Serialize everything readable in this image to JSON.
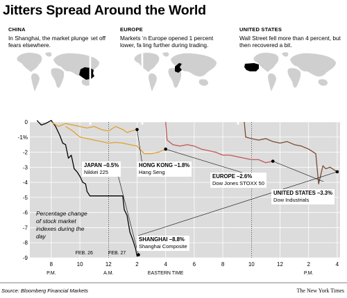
{
  "title": "Jitters Spread Around the World",
  "regions": [
    {
      "name": "CHINA",
      "text": "In Shanghai, the market plunge set off fears elsewhere.",
      "highlight": "china"
    },
    {
      "name": "EUROPE",
      "text": "Markets in Europe opened 1 percent lower, falling further during trading.",
      "highlight": "europe"
    },
    {
      "name": "UNITED STATES",
      "text": "Wall Street fell more than 4 percent, but then recovered a bit.",
      "highlight": "usa"
    }
  ],
  "chart_data": {
    "type": "line",
    "ylabel": "",
    "xlabel": "EASTERN TIME",
    "note": "Percentage change of stock market indexes during the day",
    "ylim": [
      -9,
      0
    ],
    "xlim": [
      6.5,
      28.2
    ],
    "x_units": "hours since noon Feb. 26 (Eastern Time)",
    "y_ticks": [
      0,
      -1,
      -2,
      -3,
      -4,
      -5,
      -6,
      -7,
      -8,
      -9
    ],
    "y_tick_labels": [
      "0",
      "-1%",
      "-2",
      "-3",
      "-4",
      "-5",
      "-6",
      "-7",
      "-8",
      "-9"
    ],
    "x_ticks": [
      {
        "x": 8,
        "label": "8"
      },
      {
        "x": 10,
        "label": "10"
      },
      {
        "x": 12,
        "label": "12"
      },
      {
        "x": 14,
        "label": "2"
      },
      {
        "x": 16,
        "label": "4"
      },
      {
        "x": 18,
        "label": "6"
      },
      {
        "x": 20,
        "label": "8"
      },
      {
        "x": 22,
        "label": "10"
      },
      {
        "x": 24,
        "label": "12"
      },
      {
        "x": 26,
        "label": "2"
      },
      {
        "x": 28,
        "label": "4"
      }
    ],
    "x_sublabels": [
      {
        "x": 8,
        "text": "P.M."
      },
      {
        "x": 12,
        "text": "A.M."
      },
      {
        "x": 26,
        "text": "P.M."
      }
    ],
    "day_labels": [
      {
        "x": 10.3,
        "text": "FEB. 26"
      },
      {
        "x": 12.6,
        "text": "FEB. 27"
      }
    ],
    "grid": true,
    "background": "#dcdcdc",
    "series": [
      {
        "name": "Shanghai Composite",
        "color": "#000000",
        "final": "-8.8%",
        "x": [
          7.0,
          7.3,
          7.6,
          8.0,
          8.3,
          8.6,
          8.8,
          9.0,
          9.2,
          9.4,
          9.6,
          9.8,
          10.0,
          10.2,
          10.4,
          10.5,
          10.7,
          11.0,
          11.5,
          12.0,
          12.5,
          13.0,
          13.1,
          13.3,
          13.5,
          13.7,
          13.9,
          14.0,
          14.1
        ],
        "y": [
          0.1,
          -0.2,
          -0.1,
          0.1,
          -0.3,
          -0.9,
          -1.4,
          -1.5,
          -2.4,
          -2.2,
          -3.1,
          -3.3,
          -3.6,
          -4.0,
          -4.1,
          -4.6,
          -4.9,
          -4.9,
          -4.9,
          -4.9,
          -4.9,
          -4.9,
          -5.8,
          -6.2,
          -7.3,
          -7.8,
          -8.4,
          -8.9,
          -8.8
        ]
      },
      {
        "name": "Nikkei 225",
        "color": "#e0a030",
        "final": "-0.5%",
        "x": [
          8.0,
          8.5,
          9.0,
          9.5,
          10.0,
          10.5,
          11.0,
          11.5,
          12.0,
          12.5,
          13.0,
          13.3,
          13.6,
          14.0
        ],
        "y": [
          0.0,
          -0.3,
          -0.1,
          -0.2,
          -0.3,
          -0.4,
          -0.3,
          -0.5,
          -0.6,
          -0.3,
          -0.5,
          -0.7,
          -0.6,
          -0.5
        ]
      },
      {
        "name": "Hang Seng",
        "color": "#e0a030",
        "final": "-1.8%",
        "x": [
          9.0,
          9.5,
          10.0,
          10.5,
          11.0,
          11.5,
          12.0,
          12.5,
          13.0,
          13.5,
          14.0,
          14.5,
          15.0,
          15.5,
          16.0
        ],
        "y": [
          -0.3,
          -0.6,
          -1.0,
          -1.1,
          -1.2,
          -1.3,
          -1.4,
          -1.35,
          -1.4,
          -1.5,
          -1.6,
          -2.1,
          -2.1,
          -2.0,
          -1.8
        ]
      },
      {
        "name": "Dow Jones STOXX 50",
        "color": "#c25555",
        "final": "-2.6%",
        "x": [
          16.0,
          16.1,
          16.5,
          17.0,
          17.5,
          18.0,
          18.5,
          19.0,
          19.5,
          20.0,
          20.5,
          21.0,
          21.5,
          22.0,
          22.5,
          23.0,
          23.5
        ],
        "y": [
          0.0,
          -1.2,
          -1.5,
          -1.6,
          -1.5,
          -1.6,
          -1.8,
          -1.9,
          -2.0,
          -2.2,
          -2.2,
          -2.3,
          -2.4,
          -2.5,
          -2.5,
          -2.7,
          -2.6
        ]
      },
      {
        "name": "Dow Industrials",
        "color": "#7a4a30",
        "final": "-3.3%",
        "x": [
          21.5,
          21.6,
          22.0,
          22.5,
          23.0,
          23.5,
          24.0,
          24.5,
          25.0,
          25.5,
          26.0,
          26.5,
          26.7,
          27.0,
          27.2,
          27.5,
          28.0
        ],
        "y": [
          0.0,
          -1.0,
          -1.1,
          -1.2,
          -1.1,
          -1.3,
          -1.4,
          -1.3,
          -1.5,
          -1.6,
          -1.8,
          -2.1,
          -4.1,
          -2.9,
          -3.1,
          -3.0,
          -3.3
        ]
      }
    ],
    "callouts": [
      {
        "title": "JAPAN –0.5%",
        "sub": "Nikkei 225"
      },
      {
        "title": "HONG KONG –1.8%",
        "sub": "Hang Seng"
      },
      {
        "title": "EUROPE –2.6%",
        "sub": "Dow Jones STOXX 50"
      },
      {
        "title": "UNITED STATES –3.3%",
        "sub": "Dow Industrials"
      },
      {
        "title": "SHANGHAI –8.8%",
        "sub": "Shanghai Composite"
      }
    ]
  },
  "source": "Source: Bloomberg Financial Markets",
  "credit": "The New York Times"
}
